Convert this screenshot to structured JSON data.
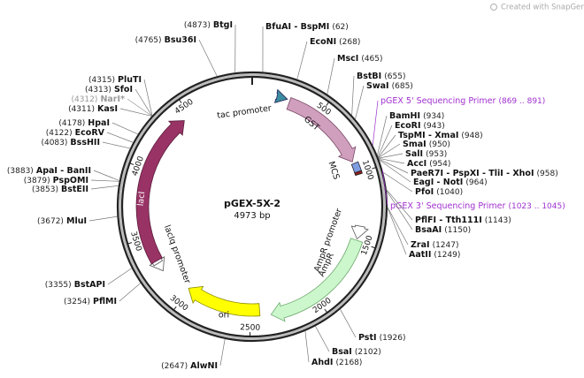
{
  "header": {
    "watermark": "Created with SnapGene®"
  },
  "map": {
    "name": "pGEX-5X-2",
    "length": "4973 bp",
    "ticks": [
      500,
      1000,
      1500,
      2000,
      2500,
      3000,
      3500,
      4000,
      4500
    ],
    "features": [
      {
        "label": "tac promoter"
      },
      {
        "label": "GST"
      },
      {
        "label": "MCS"
      },
      {
        "label": "AmpR promoter"
      },
      {
        "label": "AmpR"
      },
      {
        "label": "ori"
      },
      {
        "label": "lacIq promoter"
      },
      {
        "label": "lacI"
      }
    ],
    "sites": [
      {
        "name": "BtgI",
        "position": "(4873)"
      },
      {
        "name": "Bsu36I",
        "position": "(4765)"
      },
      {
        "name": "PluTI",
        "position": "(4315)"
      },
      {
        "name": "SfoI",
        "position": "(4313)"
      },
      {
        "name": "NarI*",
        "position": "(4312)",
        "color": "#999999"
      },
      {
        "name": "KasI",
        "position": "(4311)"
      },
      {
        "name": "HpaI",
        "position": "(4178)"
      },
      {
        "name": "EcoRV",
        "position": "(4122)"
      },
      {
        "name": "BssHII",
        "position": "(4083)"
      },
      {
        "name": "ApaI - BanII",
        "position": "(3883)"
      },
      {
        "name": "PspOMI",
        "position": "(3879)"
      },
      {
        "name": "BstEII",
        "position": "(3853)"
      },
      {
        "name": "MluI",
        "position": "(3672)"
      },
      {
        "name": "BstAPI",
        "position": "(3355)"
      },
      {
        "name": "PflMI",
        "position": "(3254)"
      },
      {
        "name": "AlwNI",
        "position": "(2647)"
      },
      {
        "name": "BfuAI - BspMI",
        "position": "(62)"
      },
      {
        "name": "EcoNI",
        "position": "(268)"
      },
      {
        "name": "MscI",
        "position": "(465)"
      },
      {
        "name": "BstBI",
        "position": "(655)"
      },
      {
        "name": "SwaI",
        "position": "(685)"
      },
      {
        "name": "pGEX 5' Sequencing Primer",
        "position": "(869 .. 891)",
        "color": "#a030d0"
      },
      {
        "name": "BamHI",
        "position": "(934)"
      },
      {
        "name": "EcoRI",
        "position": "(943)"
      },
      {
        "name": "TspMI - XmaI",
        "position": "(948)"
      },
      {
        "name": "SmaI",
        "position": "(950)"
      },
      {
        "name": "SalI",
        "position": "(953)"
      },
      {
        "name": "AccI",
        "position": "(954)"
      },
      {
        "name": "PaeR7I - PspXI - TliI - XhoI",
        "position": "(958)"
      },
      {
        "name": "EagI - NotI",
        "position": "(964)"
      },
      {
        "name": "PfoI",
        "position": "(1040)"
      },
      {
        "name": "pGEX 3' Sequencing Primer",
        "position": "(1023 .. 1045)",
        "color": "#a030d0"
      },
      {
        "name": "PflFI - Tth111I",
        "position": "(1143)"
      },
      {
        "name": "BsaAI",
        "position": "(1150)"
      },
      {
        "name": "ZraI",
        "position": "(1247)"
      },
      {
        "name": "AatII",
        "position": "(1249)"
      },
      {
        "name": "PstI",
        "position": "(1926)"
      },
      {
        "name": "BsaI",
        "position": "(2102)"
      },
      {
        "name": "AhdI",
        "position": "(2168)"
      }
    ]
  }
}
